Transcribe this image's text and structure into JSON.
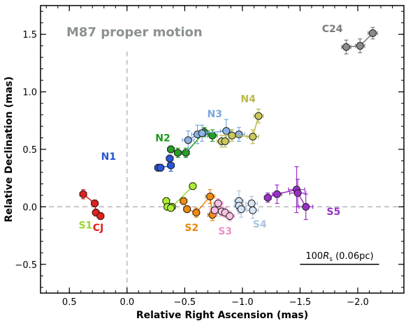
{
  "chart_data": {
    "type": "scatter",
    "title": "M87 proper motion",
    "title_color": "#8c9191",
    "xlabel": "Relative Right Ascension (mas)",
    "ylabel": "Relative Declination (mas)",
    "xlim": [
      0.75,
      -2.4
    ],
    "ylim": [
      -0.75,
      1.75
    ],
    "x_axis_reversed": true,
    "xticks": [
      0.5,
      0.0,
      -0.5,
      -1.0,
      -1.5,
      -2.0
    ],
    "xtick_labels": [
      "0.5",
      "0.0",
      "−0.5",
      "−1.0",
      "−1.5",
      "−2.0"
    ],
    "yticks": [
      -0.5,
      0.0,
      0.5,
      1.0,
      1.5
    ],
    "ytick_labels": [
      "−0.5",
      "0.0",
      "0.5",
      "1.0",
      "1.5"
    ],
    "reference_lines": [
      {
        "orientation": "horizontal",
        "value": 0.0,
        "style": "dashed",
        "color": "#a8a8a8"
      },
      {
        "orientation": "vertical",
        "value": 0.0,
        "style": "dashed",
        "color": "#a8a8a8"
      }
    ],
    "scale_bar": {
      "label_prefix": "100",
      "label_var": "R",
      "label_sub": "s",
      "label_suffix": " (0.06pc)",
      "length_mas": -0.685,
      "x_start": -1.5
    },
    "series": [
      {
        "name": "CJ",
        "color": "#e3201c",
        "fill": "#e3201c",
        "label_at": [
          0.25,
          -0.21
        ],
        "points": [
          {
            "x": 0.38,
            "y": 0.11,
            "xerr": 0.03,
            "yerr": 0.04
          },
          {
            "x": 0.28,
            "y": 0.03,
            "xerr": 0.03,
            "yerr": 0.03
          },
          {
            "x": 0.27,
            "y": -0.05,
            "xerr": 0.03,
            "yerr": 0.03
          },
          {
            "x": 0.23,
            "y": -0.08,
            "xerr": 0.03,
            "yerr": 0.03
          }
        ]
      },
      {
        "name": "N1",
        "color": "#2a55d6",
        "fill": "#2a55d6",
        "label_at": [
          0.16,
          0.41
        ],
        "points": [
          {
            "x": -0.27,
            "y": 0.34,
            "xerr": 0.03,
            "yerr": 0.03
          },
          {
            "x": -0.29,
            "y": 0.34,
            "xerr": 0.03,
            "yerr": 0.03
          },
          {
            "x": -0.38,
            "y": 0.36,
            "xerr": 0.03,
            "yerr": 0.05
          },
          {
            "x": -0.37,
            "y": 0.42,
            "xerr": 0.03,
            "yerr": 0.03
          }
        ]
      },
      {
        "name": "N2",
        "color": "#1e9a1a",
        "fill": "#26a126",
        "label_at": [
          -0.31,
          0.57
        ],
        "points": [
          {
            "x": -0.38,
            "y": 0.5,
            "xerr": 0.03,
            "yerr": 0.03
          },
          {
            "x": -0.44,
            "y": 0.47,
            "xerr": 0.03,
            "yerr": 0.04
          },
          {
            "x": -0.51,
            "y": 0.47,
            "xerr": 0.03,
            "yerr": 0.04
          },
          {
            "x": -0.67,
            "y": 0.65,
            "xerr": 0.04,
            "yerr": 0.04
          },
          {
            "x": -0.74,
            "y": 0.62,
            "xerr": 0.04,
            "yerr": 0.05
          }
        ]
      },
      {
        "name": "N3",
        "color": "#79a7de",
        "fill": "#8bb2e3",
        "label_at": [
          -0.76,
          0.78
        ],
        "points": [
          {
            "x": -0.53,
            "y": 0.58,
            "xerr": 0.05,
            "yerr": 0.08
          },
          {
            "x": -0.61,
            "y": 0.63,
            "xerr": 0.05,
            "yerr": 0.08
          },
          {
            "x": -0.65,
            "y": 0.64,
            "xerr": 0.04,
            "yerr": 0.07
          },
          {
            "x": -0.86,
            "y": 0.66,
            "xerr": 0.05,
            "yerr": 0.1
          },
          {
            "x": -0.97,
            "y": 0.63,
            "xerr": 0.05,
            "yerr": 0.06
          }
        ]
      },
      {
        "name": "N4",
        "color": "#b9b94a",
        "fill": "#c9c95e",
        "label_at": [
          -1.05,
          0.91
        ],
        "points": [
          {
            "x": -0.82,
            "y": 0.57,
            "xerr": 0.04,
            "yerr": 0.05
          },
          {
            "x": -0.85,
            "y": 0.57,
            "xerr": 0.04,
            "yerr": 0.05
          },
          {
            "x": -0.91,
            "y": 0.62,
            "xerr": 0.05,
            "yerr": 0.05
          },
          {
            "x": -1.09,
            "y": 0.61,
            "xerr": 0.05,
            "yerr": 0.06
          },
          {
            "x": -1.14,
            "y": 0.79,
            "xerr": 0.04,
            "yerr": 0.06
          }
        ]
      },
      {
        "name": "S1",
        "color": "#9bd52f",
        "fill": "#adf033",
        "label_at": [
          0.36,
          -0.19
        ],
        "points": [
          {
            "x": -0.34,
            "y": 0.05,
            "xerr": 0.03,
            "yerr": 0.03
          },
          {
            "x": -0.35,
            "y": 0.0,
            "xerr": 0.03,
            "yerr": 0.03
          },
          {
            "x": -0.39,
            "y": 0.0,
            "xerr": 0.03,
            "yerr": 0.03
          },
          {
            "x": -0.38,
            "y": -0.01,
            "xerr": 0.03,
            "yerr": 0.03
          },
          {
            "x": -0.57,
            "y": 0.18,
            "xerr": 0.03,
            "yerr": 0.03
          }
        ]
      },
      {
        "name": "S2",
        "color": "#e8860f",
        "fill": "#f08a12",
        "label_at": [
          -0.56,
          -0.21
        ],
        "points": [
          {
            "x": -0.49,
            "y": 0.05,
            "xerr": 0.03,
            "yerr": 0.03
          },
          {
            "x": -0.52,
            "y": -0.02,
            "xerr": 0.03,
            "yerr": 0.03
          },
          {
            "x": -0.6,
            "y": -0.05,
            "xerr": 0.03,
            "yerr": 0.04
          },
          {
            "x": -0.72,
            "y": 0.09,
            "xerr": 0.04,
            "yerr": 0.06
          },
          {
            "x": -0.74,
            "y": -0.07,
            "xerr": 0.04,
            "yerr": 0.05
          }
        ]
      },
      {
        "name": "S3",
        "color": "#ec8fc4",
        "fill": "#f7c3e3",
        "label_at": [
          -0.85,
          -0.24
        ],
        "points": [
          {
            "x": -0.79,
            "y": 0.03,
            "xerr": 0.04,
            "yerr": 0.04
          },
          {
            "x": -0.76,
            "y": -0.03,
            "xerr": 0.04,
            "yerr": 0.04
          },
          {
            "x": -0.82,
            "y": -0.04,
            "xerr": 0.04,
            "yerr": 0.04
          },
          {
            "x": -0.85,
            "y": -0.05,
            "xerr": 0.04,
            "yerr": 0.04
          },
          {
            "x": -0.89,
            "y": -0.08,
            "xerr": 0.04,
            "yerr": 0.04
          }
        ]
      },
      {
        "name": "S4",
        "color": "#a9c4e0",
        "fill": "#d7e5f3",
        "label_at": [
          -1.15,
          -0.18
        ],
        "points": [
          {
            "x": -0.97,
            "y": 0.05,
            "xerr": 0.04,
            "yerr": 0.09
          },
          {
            "x": -0.97,
            "y": 0.01,
            "xerr": 0.04,
            "yerr": 0.07
          },
          {
            "x": -0.99,
            "y": -0.02,
            "xerr": 0.04,
            "yerr": 0.07
          },
          {
            "x": -1.08,
            "y": 0.03,
            "xerr": 0.05,
            "yerr": 0.06
          },
          {
            "x": -1.09,
            "y": -0.03,
            "xerr": 0.05,
            "yerr": 0.07
          }
        ]
      },
      {
        "name": "S5",
        "color": "#9a2fc7",
        "fill": "#9a2fc7",
        "label_at": [
          -1.79,
          -0.07
        ],
        "points": [
          {
            "x": -1.22,
            "y": 0.08,
            "xerr": 0.03,
            "yerr": 0.04
          },
          {
            "x": -1.3,
            "y": 0.11,
            "xerr": 0.04,
            "yerr": 0.08
          },
          {
            "x": -1.47,
            "y": 0.15,
            "xerr": 0.07,
            "yerr": 0.2
          },
          {
            "x": -1.48,
            "y": 0.12,
            "xerr": 0.07,
            "yerr": 0.12
          },
          {
            "x": -1.55,
            "y": 0.0,
            "xerr": 0.06,
            "yerr": 0.11
          }
        ]
      },
      {
        "name": "C24",
        "color": "#7a7a7a",
        "fill": "#8a8c8a",
        "label_at": [
          -1.78,
          1.52
        ],
        "points": [
          {
            "x": -1.9,
            "y": 1.39,
            "xerr": 0.04,
            "yerr": 0.06
          },
          {
            "x": -2.02,
            "y": 1.4,
            "xerr": 0.04,
            "yerr": 0.06
          },
          {
            "x": -2.13,
            "y": 1.51,
            "xerr": 0.04,
            "yerr": 0.05
          }
        ]
      }
    ]
  }
}
